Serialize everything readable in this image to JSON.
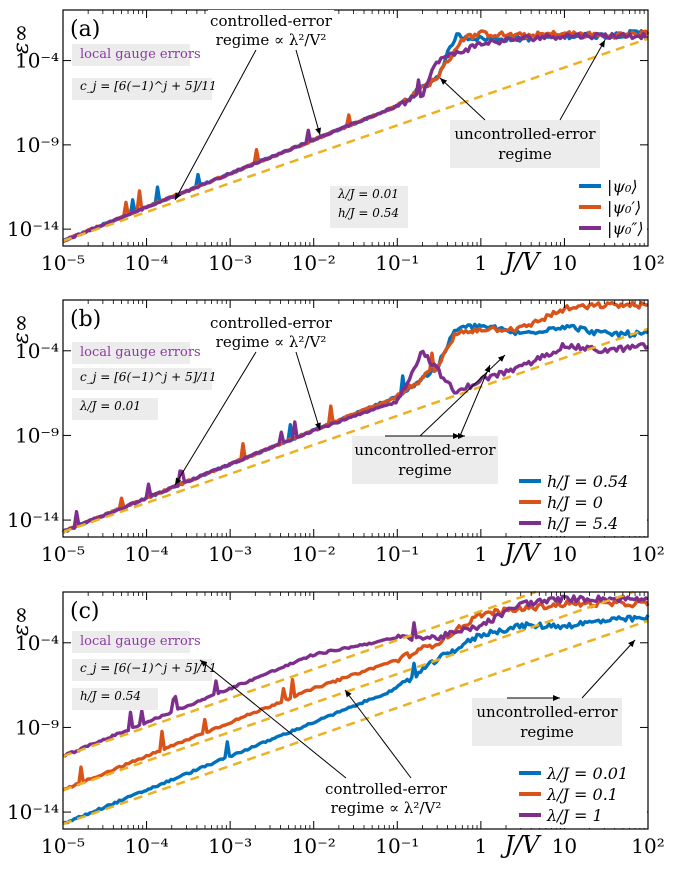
{
  "x_axis_label": "J/V",
  "y_axis_label": "ε∞",
  "x_tick_labels": [
    "10⁻⁵",
    "10⁻⁴",
    "10⁻³",
    "10⁻²",
    "10⁻¹",
    "1",
    "10",
    "10²"
  ],
  "y_tick_labels": [
    "10⁻¹⁴",
    "10⁻⁹",
    "10⁻⁴"
  ],
  "colors": {
    "blue": "#0072bd",
    "orange": "#d95319",
    "purple": "#7e2f8e",
    "dashed": "#edb120",
    "annot_text": "#8c3aa0",
    "box_bg": "#ececec"
  },
  "chart_data": [
    {
      "type": "line",
      "panel_label": "(a)",
      "xlabel": "J/V",
      "ylabel": "ε∞",
      "x_scale": "log",
      "y_scale": "log",
      "xlim": [
        1e-05,
        100
      ],
      "ylim": [
        1e-15,
        0.1
      ],
      "grid": false,
      "legend": "bottom-right",
      "annotations": {
        "gauge": "local gauge errors",
        "cj": "c_j = [6(−1)^j + 5]/11",
        "params": [
          "λ/J = 0.01",
          "h/J = 0.54"
        ],
        "controlled": [
          "controlled-error",
          "regime ∝ λ²/V²"
        ],
        "uncontrolled": [
          "uncontrolled-error",
          "regime"
        ]
      },
      "legend_entries": [
        "|ψ₀⟩",
        "|ψ₀′⟩",
        "|ψ₀″⟩"
      ],
      "series": [
        {
          "name": "|ψ₀⟩",
          "color": "blue",
          "x": [
            1e-05,
            0.0001,
            0.001,
            0.01,
            0.1,
            0.3,
            0.5,
            1,
            3,
            10,
            30,
            100
          ],
          "y": [
            2e-15,
            2e-13,
            2e-11,
            2e-09,
            2e-07,
            1e-05,
            0.003,
            0.002,
            0.002,
            0.003,
            0.003,
            0.005
          ]
        },
        {
          "name": "|ψ₀′⟩",
          "color": "orange",
          "x": [
            1e-05,
            0.0001,
            0.001,
            0.01,
            0.1,
            0.3,
            0.6,
            1,
            3,
            10,
            30,
            100
          ],
          "y": [
            2e-15,
            2e-13,
            2e-11,
            2e-09,
            2e-07,
            1e-05,
            0.002,
            0.004,
            0.003,
            0.004,
            0.003,
            0.004
          ]
        },
        {
          "name": "|ψ₀″⟩",
          "color": "purple",
          "x": [
            1e-05,
            0.0001,
            0.001,
            0.01,
            0.1,
            0.2,
            0.3,
            1,
            3,
            10,
            30,
            100
          ],
          "y": [
            2e-15,
            2e-13,
            2e-11,
            2e-09,
            2e-07,
            1e-06,
            0.0001,
            0.001,
            0.002,
            0.003,
            0.003,
            0.003
          ]
        },
        {
          "name": "",
          "color": "dashed",
          "dashed": true,
          "x": [
            1e-05,
            100
          ],
          "y": [
            2e-15,
            0.002
          ]
        }
      ]
    },
    {
      "type": "line",
      "panel_label": "(b)",
      "xlabel": "J/V",
      "ylabel": "ε∞",
      "x_scale": "log",
      "y_scale": "log",
      "xlim": [
        1e-05,
        100
      ],
      "ylim": [
        1e-15,
        0.1
      ],
      "grid": false,
      "legend": "bottom-right",
      "annotations": {
        "gauge": "local gauge errors",
        "cj": "c_j = [6(−1)^j + 5]/11",
        "params": [
          "λ/J = 0.01"
        ],
        "controlled": [
          "controlled-error",
          "regime ∝ λ²/V²"
        ],
        "uncontrolled": [
          "uncontrolled-error",
          "regime"
        ]
      },
      "legend_entries": [
        "h/J = 0.54",
        "h/J = 0",
        "h/J = 5.4"
      ],
      "series": [
        {
          "name": "h/J = 0.54",
          "color": "blue",
          "x": [
            1e-05,
            0.0001,
            0.001,
            0.01,
            0.1,
            0.3,
            0.5,
            1,
            3,
            10,
            30,
            100
          ],
          "y": [
            2e-15,
            2e-13,
            2e-11,
            2e-09,
            2e-07,
            1e-05,
            0.002,
            0.003,
            0.001,
            0.003,
            0.001,
            0.001
          ]
        },
        {
          "name": "h/J = 0",
          "color": "orange",
          "x": [
            1e-05,
            0.0001,
            0.001,
            0.01,
            0.1,
            0.3,
            0.5,
            1,
            3,
            10,
            30,
            100
          ],
          "y": [
            2e-15,
            2e-13,
            2e-11,
            2e-09,
            2e-07,
            1e-05,
            0.001,
            0.002,
            0.002,
            0.03,
            0.05,
            0.05
          ]
        },
        {
          "name": "h/J = 5.4",
          "color": "purple",
          "x": [
            1e-05,
            0.0001,
            0.001,
            0.01,
            0.1,
            0.2,
            0.5,
            1,
            3,
            10,
            30,
            100
          ],
          "y": [
            2e-15,
            2e-13,
            2e-11,
            2e-09,
            1e-07,
            0.0001,
            3e-07,
            2e-06,
            1e-05,
            0.0002,
            0.0001,
            0.0002
          ]
        },
        {
          "name": "",
          "color": "dashed",
          "dashed": true,
          "x": [
            1e-05,
            100
          ],
          "y": [
            2e-15,
            0.002
          ]
        }
      ]
    },
    {
      "type": "line",
      "panel_label": "(c)",
      "xlabel": "J/V",
      "ylabel": "ε∞",
      "x_scale": "log",
      "y_scale": "log",
      "xlim": [
        1e-05,
        100
      ],
      "ylim": [
        1e-15,
        0.1
      ],
      "grid": false,
      "legend": "bottom-right",
      "annotations": {
        "gauge": "local gauge errors",
        "cj": "c_j = [6(−1)^j + 5]/11",
        "params": [
          "h/J = 0.54"
        ],
        "controlled": [
          "controlled-error",
          "regime ∝ λ²/V²"
        ],
        "uncontrolled": [
          "uncontrolled-error",
          "regime"
        ]
      },
      "legend_entries": [
        "λ/J = 0.01",
        "λ/J = 0.1",
        "λ/J = 1"
      ],
      "series": [
        {
          "name": "λ/J = 0.01",
          "color": "blue",
          "x": [
            1e-05,
            0.0001,
            0.001,
            0.01,
            0.1,
            0.3,
            1,
            3,
            10,
            30,
            100
          ],
          "y": [
            2e-15,
            2e-13,
            2e-11,
            2e-09,
            2e-07,
            1e-05,
            0.0003,
            0.001,
            0.001,
            0.002,
            0.003
          ]
        },
        {
          "name": "λ/J = 0.1",
          "color": "orange",
          "x": [
            1e-05,
            0.0001,
            0.001,
            0.01,
            0.1,
            0.3,
            1,
            3,
            10,
            30,
            100
          ],
          "y": [
            2e-13,
            2e-11,
            2e-09,
            2e-07,
            1e-05,
            0.0001,
            0.005,
            0.01,
            0.02,
            0.02,
            0.02
          ]
        },
        {
          "name": "λ/J = 1",
          "color": "purple",
          "x": [
            1e-05,
            0.0001,
            0.001,
            0.01,
            0.1,
            0.3,
            1,
            3,
            10,
            30,
            100
          ],
          "y": [
            2e-11,
            2e-09,
            2e-07,
            2e-05,
            0.0002,
            0.0002,
            0.001,
            0.02,
            0.04,
            0.04,
            0.04
          ]
        },
        {
          "name": "",
          "color": "dashed",
          "dashed": true,
          "x": [
            1e-05,
            100
          ],
          "y": [
            2e-15,
            0.002
          ]
        },
        {
          "name": "",
          "color": "dashed",
          "dashed": true,
          "x": [
            1e-05,
            100
          ],
          "y": [
            2e-13,
            0.2
          ]
        },
        {
          "name": "",
          "color": "dashed",
          "dashed": true,
          "x": [
            1e-05,
            100
          ],
          "y": [
            2e-11,
            20.0
          ]
        }
      ]
    }
  ]
}
